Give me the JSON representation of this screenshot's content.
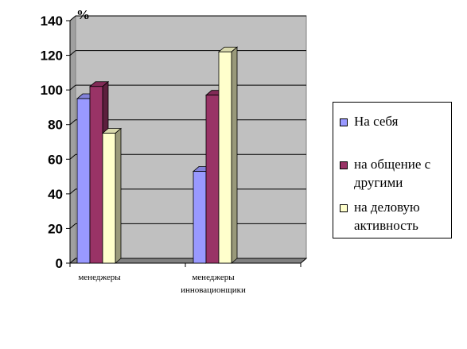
{
  "chart_data": {
    "type": "bar",
    "unit_label": "%",
    "categories": [
      "менеджеры",
      "менеджеры инновационщики"
    ],
    "series": [
      {
        "name": "На себя",
        "values": [
          95,
          53
        ],
        "color": "#9999ff"
      },
      {
        "name": "на общение с другими",
        "values": [
          102,
          97
        ],
        "color": "#993366"
      },
      {
        "name": "на деловую активность",
        "values": [
          75,
          122
        ],
        "color": "#ffffcc"
      }
    ],
    "ylim": [
      0,
      140
    ],
    "yticks": [
      "0",
      "20",
      "40",
      "60",
      "80",
      "100",
      "120",
      "140"
    ],
    "grid": true,
    "legend_position": "right",
    "plot_background": "#c0c0c0"
  }
}
